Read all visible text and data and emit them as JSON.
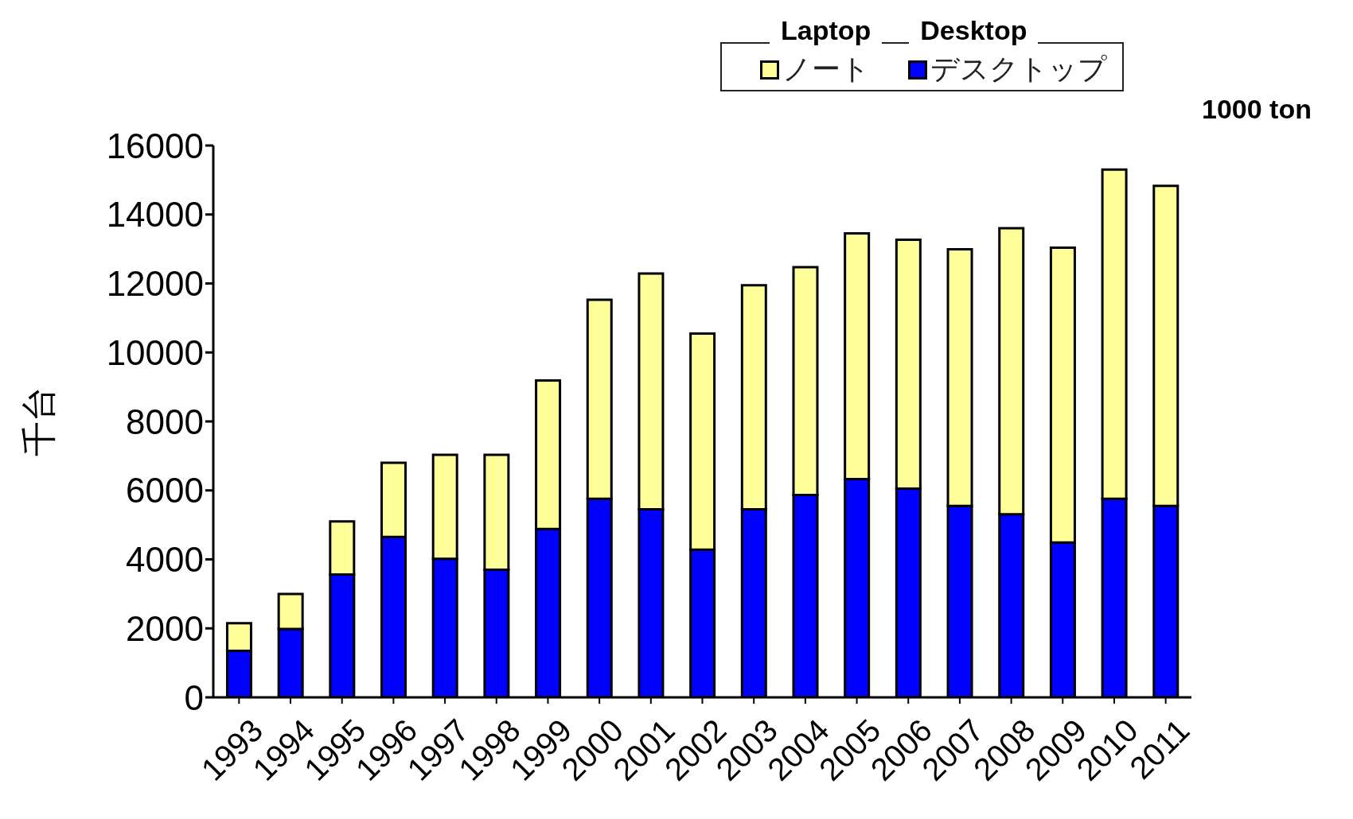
{
  "chart_data": {
    "type": "bar",
    "stacked": true,
    "ylabel": "千台",
    "categories": [
      "1993",
      "1994",
      "1995",
      "1996",
      "1997",
      "1998",
      "1999",
      "2000",
      "2001",
      "2002",
      "2003",
      "2004",
      "2005",
      "2006",
      "2007",
      "2008",
      "2009",
      "2010",
      "2011"
    ],
    "series": [
      {
        "name": "デスクトップ",
        "color": "#0000ff",
        "values": [
          1350,
          1980,
          3560,
          4650,
          4020,
          3700,
          4880,
          5760,
          5450,
          4280,
          5450,
          5870,
          6330,
          6050,
          5550,
          5310,
          4490,
          5760,
          5550
        ]
      },
      {
        "name": "ノート",
        "color": "#ffff99",
        "values": [
          800,
          1020,
          1540,
          2150,
          3010,
          3330,
          4310,
          5770,
          6840,
          6270,
          6500,
          6600,
          7120,
          7220,
          7440,
          8290,
          8550,
          9540,
          9280
        ]
      }
    ],
    "ylim": [
      0,
      16000
    ],
    "yticks": [
      0,
      2000,
      4000,
      6000,
      8000,
      10000,
      12000,
      14000,
      16000
    ],
    "legend": "top right",
    "annotations": [
      "Laptop",
      "Desktop",
      "1000 ton"
    ]
  }
}
